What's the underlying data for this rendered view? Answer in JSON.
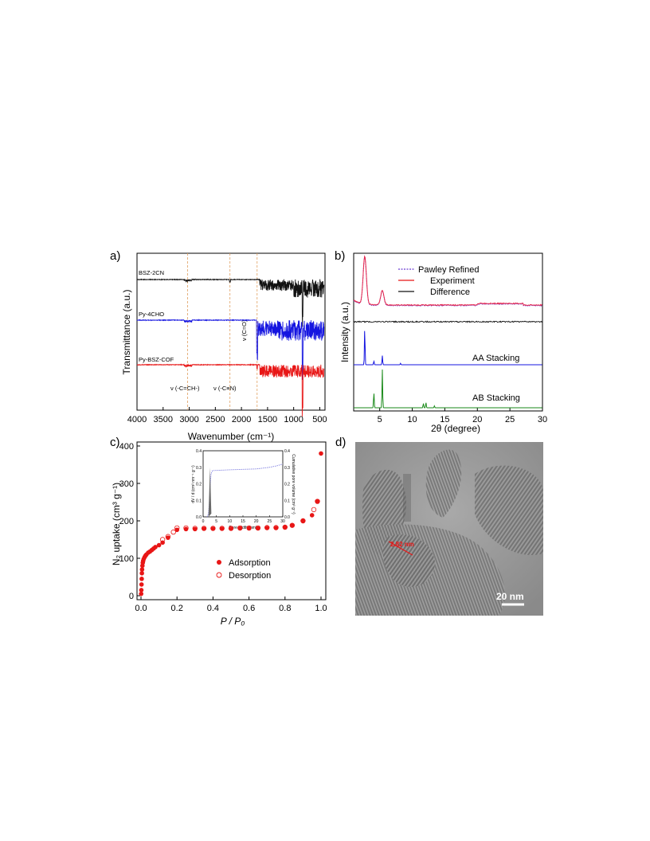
{
  "panels": {
    "a": "a)",
    "b": "b)",
    "c": "c)",
    "d": "d)"
  },
  "colors": {
    "black": "#111111",
    "blue": "#1515e0",
    "red": "#e81616",
    "green": "#1a8a1a",
    "pink": "#e8264a",
    "guide": "#e0a060"
  },
  "chart_data": [
    {
      "panel": "a",
      "type": "line",
      "xlabel": "Wavenumber (cm⁻¹)",
      "ylabel": "Transmittance (a.u.)",
      "xlim": [
        4000,
        400
      ],
      "x_ticks": [
        "4000",
        "3500",
        "3000",
        "2500",
        "2000",
        "1500",
        "1000",
        "500"
      ],
      "series": [
        {
          "name": "BSZ-2CN",
          "color": "#111111",
          "baseline": 0
        },
        {
          "name": "Py-4CHO",
          "color": "#1515e0",
          "baseline": 1
        },
        {
          "name": "Py-BSZ-COF",
          "color": "#e81616",
          "baseline": 2
        }
      ],
      "annotations": [
        "ν (-C=CH-)",
        "ν (-C≡N)",
        "ν (C=O)"
      ],
      "guide_lines_x": [
        3030,
        2220,
        1700
      ]
    },
    {
      "panel": "b",
      "type": "line",
      "xlabel": "2θ (degree)",
      "ylabel": "Intensity (a.u.)",
      "xlim": [
        1,
        30
      ],
      "x_ticks": [
        "5",
        "10",
        "15",
        "20",
        "25",
        "30"
      ],
      "legend": [
        "Pawley Refined",
        "Experiment",
        "Difference"
      ],
      "labels": [
        "AA Stacking",
        "AB Stacking"
      ],
      "experiment_peaks": [
        {
          "x": 2.7,
          "y": 1.0
        },
        {
          "x": 5.4,
          "y": 0.3
        }
      ],
      "aa_peaks": [
        {
          "x": 2.7,
          "y": 1.0
        },
        {
          "x": 4.1,
          "y": 0.1
        },
        {
          "x": 5.4,
          "y": 0.25
        },
        {
          "x": 8.2,
          "y": 0.04
        }
      ],
      "ab_peaks": [
        {
          "x": 4.1,
          "y": 0.4
        },
        {
          "x": 5.4,
          "y": 1.0
        },
        {
          "x": 11.7,
          "y": 0.12
        },
        {
          "x": 12.1,
          "y": 0.14
        },
        {
          "x": 13.4,
          "y": 0.05
        }
      ]
    },
    {
      "panel": "c",
      "type": "scatter",
      "xlabel": "P / P₀",
      "ylabel": "N₂ uptake (cm³ g⁻¹)",
      "xlim": [
        0,
        1.0
      ],
      "ylim": [
        0,
        400
      ],
      "x_ticks": [
        "0.0",
        "0.2",
        "0.4",
        "0.6",
        "0.8",
        "1.0"
      ],
      "y_ticks": [
        "0",
        "100",
        "200",
        "300",
        "400"
      ],
      "series": [
        {
          "name": "Adsorption",
          "marker": "filled",
          "x": [
            0.001,
            0.002,
            0.003,
            0.004,
            0.005,
            0.006,
            0.008,
            0.01,
            0.012,
            0.015,
            0.02,
            0.025,
            0.03,
            0.04,
            0.05,
            0.06,
            0.07,
            0.08,
            0.1,
            0.12,
            0.15,
            0.2,
            0.25,
            0.3,
            0.35,
            0.4,
            0.45,
            0.5,
            0.55,
            0.6,
            0.65,
            0.7,
            0.75,
            0.8,
            0.84,
            0.9,
            0.95,
            0.98,
            1.0
          ],
          "y": [
            5,
            15,
            30,
            45,
            60,
            70,
            80,
            88,
            93,
            98,
            103,
            107,
            110,
            115,
            118,
            122,
            126,
            130,
            135,
            142,
            155,
            176,
            178,
            178,
            179,
            179,
            179,
            179,
            180,
            180,
            180,
            181,
            181,
            183,
            188,
            200,
            215,
            252,
            380
          ]
        },
        {
          "name": "Desorption",
          "marker": "open",
          "x": [
            0.98,
            0.96,
            0.9,
            0.84,
            0.8,
            0.75,
            0.7,
            0.65,
            0.6,
            0.55,
            0.5,
            0.45,
            0.4,
            0.35,
            0.3,
            0.25,
            0.2,
            0.18,
            0.15,
            0.12
          ],
          "y": [
            252,
            230,
            200,
            188,
            183,
            182,
            182,
            181,
            181,
            181,
            180,
            180,
            180,
            180,
            180,
            181,
            181,
            170,
            158,
            150
          ]
        }
      ],
      "inset": {
        "xlabel": "Pore width (nm)",
        "ylabel_left": "dV / d (cm³ nm⁻¹ g⁻¹)",
        "ylabel_right": "Cumulative pore volume (cm³ g⁻¹)",
        "x_ticks": [
          "0",
          "5",
          "10",
          "15",
          "20",
          "25",
          "30"
        ],
        "y_ticks_left": [
          "0.0",
          "0.1",
          "0.2",
          "0.3",
          "0.4"
        ],
        "y_ticks_right": [
          "0.0",
          "0.1",
          "0.2",
          "0.3",
          "0.4"
        ]
      }
    }
  ],
  "tem": {
    "scale_label": "20 nm",
    "spacing_label": "2.82 nm"
  }
}
